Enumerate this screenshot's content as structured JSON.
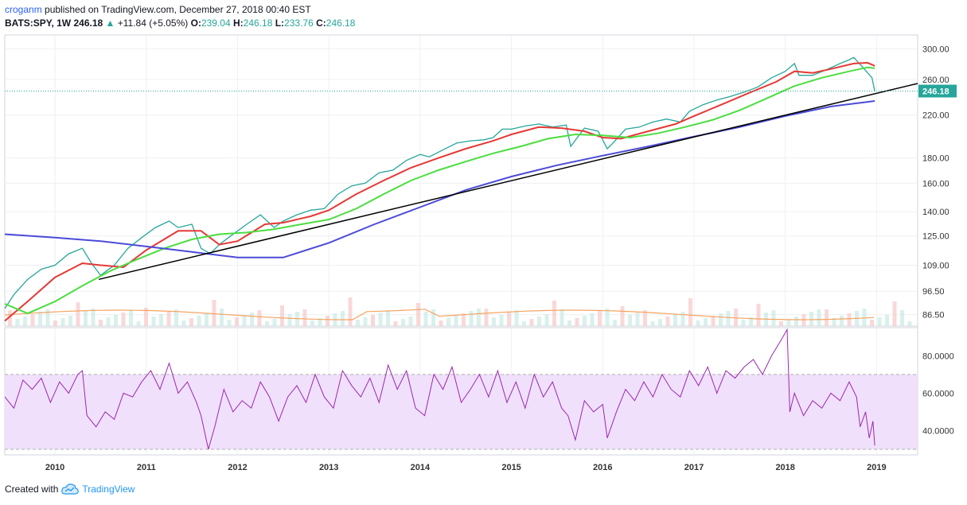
{
  "header": {
    "author": "croganm",
    "published_text": "published on TradingView.com, December 27, 2018 00:40 EST",
    "symbol": "BATS:SPY, 1W",
    "last": "246.18",
    "change_arrow": "▲",
    "change": "+11.84 (+5.05%)",
    "o_label": "O:",
    "o_value": "239.04",
    "h_label": "H:",
    "h_value": "246.18",
    "l_label": "L:",
    "l_value": "233.76",
    "c_label": "C:",
    "c_value": "246.18"
  },
  "footer": {
    "created_with": "Created with",
    "brand": "TradingView",
    "logo_icon": "tradingview-cloud-icon"
  },
  "colors": {
    "up": "#26a69a",
    "down": "#ef5350",
    "ma_fast": "#e53935",
    "ma_slow": "#4cdd40",
    "ma_long": "#4b4bd8",
    "trendline": "#000000",
    "rsi": "#9c27b0",
    "rsi_band": "#f0e0fb",
    "volume_ma": "#f4a460",
    "price_label_bg": "#26a69a"
  },
  "chart_data": [
    {
      "type": "line",
      "title": "",
      "y_scale": "log",
      "ylim": [
        82,
        320
      ],
      "xlim": [
        2009.45,
        2019.45
      ],
      "x_ticks": [
        "2010",
        "2011",
        "2012",
        "2013",
        "2014",
        "2015",
        "2016",
        "2017",
        "2018",
        "2019"
      ],
      "y_ticks": [
        "300.00",
        "260.00",
        "220.00",
        "180.00",
        "160.00",
        "140.00",
        "125.00",
        "109.00",
        "96.50",
        "86.50"
      ],
      "current_price_label": "246.18",
      "current_price": 246.18,
      "series": [
        {
          "key": "price",
          "x": [
            2009.45,
            2009.55,
            2009.7,
            2009.85,
            2010.0,
            2010.15,
            2010.3,
            2010.4,
            2010.5,
            2010.65,
            2010.8,
            2010.95,
            2011.1,
            2011.25,
            2011.35,
            2011.5,
            2011.6,
            2011.7,
            2011.8,
            2011.9,
            2012.1,
            2012.25,
            2012.4,
            2012.5,
            2012.65,
            2012.8,
            2012.95,
            2013.1,
            2013.25,
            2013.4,
            2013.55,
            2013.7,
            2013.85,
            2014.0,
            2014.1,
            2014.25,
            2014.4,
            2014.55,
            2014.7,
            2014.8,
            2014.9,
            2015.0,
            2015.15,
            2015.3,
            2015.45,
            2015.6,
            2015.65,
            2015.8,
            2015.95,
            2016.05,
            2016.1,
            2016.25,
            2016.4,
            2016.55,
            2016.7,
            2016.85,
            2016.95,
            2017.1,
            2017.25,
            2017.4,
            2017.55,
            2017.7,
            2017.85,
            2018.0,
            2018.1,
            2018.15,
            2018.3,
            2018.45,
            2018.6,
            2018.7,
            2018.75,
            2018.85,
            2018.95,
            2018.98
          ],
          "values": [
            89,
            95,
            102,
            107,
            109,
            115,
            118,
            110,
            104,
            109,
            118,
            124,
            130,
            134,
            130,
            132,
            118,
            115,
            120,
            124,
            132,
            138,
            130,
            134,
            138,
            141,
            142,
            152,
            158,
            160,
            168,
            170,
            178,
            183,
            181,
            187,
            193,
            195,
            196,
            198,
            206,
            206,
            209,
            211,
            208,
            210,
            190,
            207,
            204,
            188,
            192,
            206,
            208,
            213,
            216,
            213,
            224,
            231,
            236,
            240,
            245,
            251,
            262,
            270,
            280,
            265,
            265,
            272,
            280,
            285,
            288,
            275,
            262,
            246
          ]
        },
        {
          "key": "ma_fast",
          "x": [
            2009.45,
            2009.7,
            2010.0,
            2010.3,
            2010.5,
            2010.75,
            2011.0,
            2011.35,
            2011.6,
            2011.8,
            2012.0,
            2012.3,
            2012.5,
            2012.8,
            2013.0,
            2013.3,
            2013.6,
            2013.9,
            2014.2,
            2014.5,
            2014.8,
            2015.0,
            2015.3,
            2015.55,
            2015.8,
            2016.0,
            2016.2,
            2016.5,
            2016.8,
            2017.0,
            2017.3,
            2017.6,
            2017.9,
            2018.1,
            2018.3,
            2018.5,
            2018.75,
            2018.9,
            2018.98
          ],
          "values": [
            84,
            92,
            103,
            110,
            109,
            108,
            117,
            128,
            128,
            120,
            122,
            132,
            133,
            137,
            141,
            152,
            162,
            172,
            180,
            188,
            195,
            201,
            208,
            207,
            204,
            198,
            197,
            204,
            211,
            219,
            231,
            244,
            257,
            270,
            268,
            273,
            280,
            281,
            277
          ]
        },
        {
          "key": "ma_slow",
          "x": [
            2009.45,
            2009.7,
            2010.0,
            2010.3,
            2010.6,
            2010.9,
            2011.2,
            2011.5,
            2011.8,
            2012.1,
            2012.4,
            2012.7,
            2013.0,
            2013.3,
            2013.6,
            2013.9,
            2014.2,
            2014.5,
            2014.8,
            2015.1,
            2015.4,
            2015.7,
            2016.0,
            2016.3,
            2016.6,
            2016.9,
            2017.2,
            2017.5,
            2017.8,
            2018.1,
            2018.4,
            2018.7,
            2018.9,
            2018.98
          ],
          "values": [
            91,
            87,
            92,
            99,
            106,
            112,
            118,
            123,
            126,
            127,
            129,
            132,
            135,
            142,
            152,
            162,
            170,
            177,
            184,
            190,
            197,
            201,
            200,
            198,
            202,
            208,
            215,
            225,
            238,
            252,
            262,
            270,
            275,
            274
          ]
        },
        {
          "key": "ma_long",
          "x": [
            2009.45,
            2010.0,
            2010.5,
            2011.0,
            2011.5,
            2012.0,
            2012.5,
            2013.0,
            2013.5,
            2014.0,
            2014.5,
            2015.0,
            2015.5,
            2016.0,
            2016.5,
            2017.0,
            2017.5,
            2018.0,
            2018.5,
            2018.98
          ],
          "values": [
            126,
            124,
            122,
            119,
            116,
            113,
            113,
            121,
            132,
            143,
            155,
            165,
            174,
            182,
            190,
            199,
            208,
            219,
            229,
            235
          ]
        },
        {
          "key": "trendline",
          "x": [
            2010.48,
            2019.45
          ],
          "values": [
            102,
            255
          ]
        }
      ]
    },
    {
      "type": "line",
      "title": "",
      "ylim": [
        27,
        95
      ],
      "y_ticks": [
        "80.0000",
        "60.0000",
        "40.0000"
      ],
      "band": [
        30,
        70
      ],
      "series": [
        {
          "key": "rsi",
          "x": [
            2009.45,
            2009.55,
            2009.65,
            2009.75,
            2009.85,
            2009.95,
            2010.05,
            2010.15,
            2010.25,
            2010.3,
            2010.35,
            2010.45,
            2010.55,
            2010.65,
            2010.75,
            2010.85,
            2010.95,
            2011.05,
            2011.15,
            2011.25,
            2011.35,
            2011.45,
            2011.55,
            2011.6,
            2011.68,
            2011.75,
            2011.85,
            2011.95,
            2012.05,
            2012.15,
            2012.25,
            2012.35,
            2012.45,
            2012.55,
            2012.65,
            2012.75,
            2012.85,
            2012.95,
            2013.05,
            2013.15,
            2013.25,
            2013.35,
            2013.45,
            2013.55,
            2013.65,
            2013.75,
            2013.85,
            2013.95,
            2014.05,
            2014.15,
            2014.25,
            2014.35,
            2014.45,
            2014.55,
            2014.65,
            2014.75,
            2014.85,
            2014.95,
            2015.05,
            2015.15,
            2015.25,
            2015.35,
            2015.45,
            2015.55,
            2015.62,
            2015.7,
            2015.8,
            2015.9,
            2016.0,
            2016.05,
            2016.15,
            2016.25,
            2016.35,
            2016.45,
            2016.55,
            2016.65,
            2016.75,
            2016.85,
            2016.95,
            2017.05,
            2017.15,
            2017.25,
            2017.35,
            2017.45,
            2017.55,
            2017.65,
            2017.75,
            2017.85,
            2017.95,
            2018.02,
            2018.05,
            2018.1,
            2018.2,
            2018.3,
            2018.4,
            2018.5,
            2018.6,
            2018.7,
            2018.78,
            2018.82,
            2018.88,
            2018.92,
            2018.96,
            2018.98
          ],
          "values": [
            58,
            52,
            67,
            62,
            68,
            55,
            66,
            60,
            70,
            72,
            48,
            42,
            50,
            46,
            60,
            58,
            66,
            72,
            62,
            76,
            60,
            66,
            55,
            48,
            30,
            42,
            62,
            50,
            56,
            52,
            66,
            58,
            45,
            58,
            64,
            55,
            70,
            58,
            52,
            72,
            64,
            58,
            68,
            55,
            75,
            62,
            72,
            52,
            48,
            70,
            62,
            74,
            55,
            62,
            70,
            58,
            72,
            55,
            66,
            52,
            70,
            58,
            66,
            52,
            48,
            35,
            56,
            50,
            54,
            36,
            50,
            62,
            56,
            66,
            58,
            70,
            62,
            58,
            72,
            64,
            74,
            60,
            72,
            68,
            74,
            78,
            70,
            80,
            88,
            94,
            50,
            60,
            48,
            56,
            52,
            60,
            56,
            66,
            58,
            42,
            50,
            36,
            45,
            32
          ]
        }
      ]
    }
  ]
}
